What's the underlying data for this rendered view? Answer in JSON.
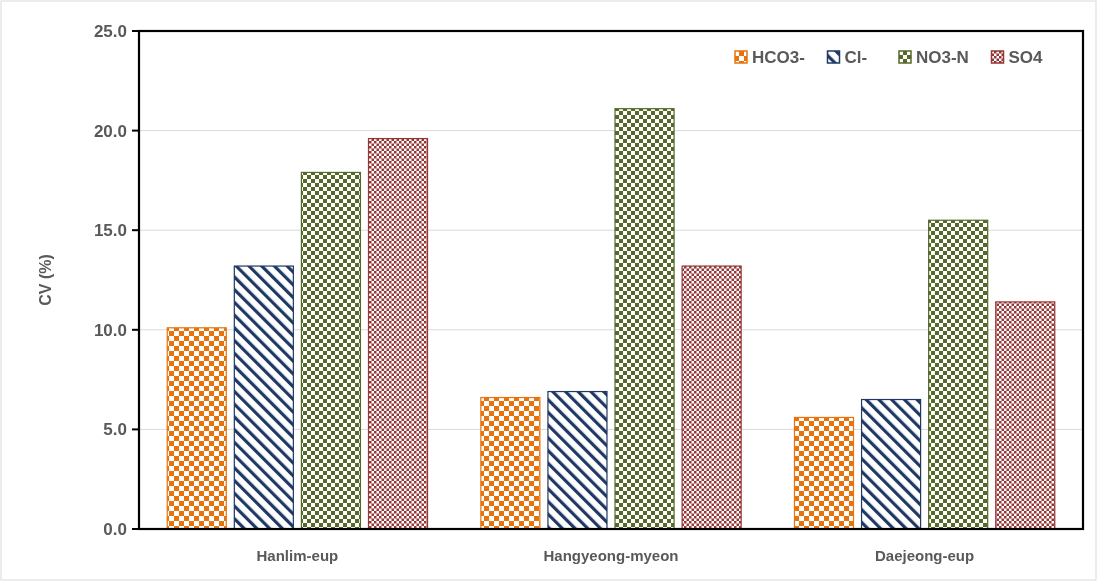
{
  "chart_data": {
    "type": "bar",
    "ylabel": "CV (%)",
    "categories": [
      "Hanlim-eup",
      "Hangyeong-myeon",
      "Daejeong-eup"
    ],
    "series": [
      {
        "name": "HCO3-",
        "color": "#e8730c",
        "values": [
          10.1,
          6.6,
          5.6
        ]
      },
      {
        "name": "Cl-",
        "color": "#1f3864",
        "values": [
          13.2,
          6.9,
          6.5
        ]
      },
      {
        "name": "NO3-N",
        "color": "#55692a",
        "values": [
          17.9,
          21.1,
          15.5
        ]
      },
      {
        "name": "SO4",
        "color": "#943634",
        "values": [
          19.6,
          13.2,
          11.4
        ]
      }
    ],
    "ylim": [
      0,
      25
    ],
    "yticks": [
      {
        "value": 0,
        "label": "0.0"
      },
      {
        "value": 5,
        "label": "5.0"
      },
      {
        "value": 10,
        "label": "10.0"
      },
      {
        "value": 15,
        "label": "15.0"
      },
      {
        "value": 20,
        "label": "20.0"
      },
      {
        "value": 25,
        "label": "25.0"
      }
    ],
    "grid": "y",
    "legend": "top right"
  }
}
